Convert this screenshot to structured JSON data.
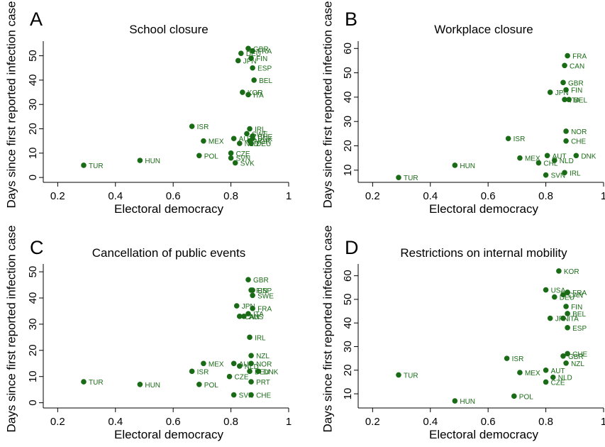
{
  "colors": {
    "marker": "#1a6b16",
    "label": "#1a6b16",
    "axis": "#000000"
  },
  "chart_data": [
    {
      "type": "scatter",
      "panel_letter": "A",
      "title": "School closure",
      "xlabel": "Electoral democracy",
      "ylabel": "Days since first reported infection case",
      "xlim": [
        0.15,
        1.0
      ],
      "ylim": [
        -2,
        56
      ],
      "xticks": [
        0.2,
        0.4,
        0.6,
        0.8,
        1
      ],
      "xtick_labels": [
        "0.2",
        "0.4",
        "0.6",
        "0.8",
        "1"
      ],
      "yticks": [
        0,
        10,
        20,
        30,
        40,
        50
      ],
      "ytick_labels": [
        "0",
        "10",
        "20",
        "30",
        "40",
        "50"
      ],
      "grid": false,
      "points": [
        {
          "x": 0.29,
          "y": 5,
          "label": "TUR"
        },
        {
          "x": 0.485,
          "y": 7,
          "label": "HUN"
        },
        {
          "x": 0.69,
          "y": 9,
          "label": "POL"
        },
        {
          "x": 0.705,
          "y": 15,
          "label": "MEX"
        },
        {
          "x": 0.665,
          "y": 21,
          "label": "ISR"
        },
        {
          "x": 0.8,
          "y": 10,
          "label": "CZE"
        },
        {
          "x": 0.8,
          "y": 8,
          "label": "SVN"
        },
        {
          "x": 0.815,
          "y": 6,
          "label": "SVK"
        },
        {
          "x": 0.81,
          "y": 16,
          "label": "AUT"
        },
        {
          "x": 0.83,
          "y": 14,
          "label": "NLD"
        },
        {
          "x": 0.865,
          "y": 20,
          "label": "IRL"
        },
        {
          "x": 0.855,
          "y": 18,
          "label": "SWE"
        },
        {
          "x": 0.875,
          "y": 17,
          "label": "CHE"
        },
        {
          "x": 0.875,
          "y": 16,
          "label": "DNK"
        },
        {
          "x": 0.865,
          "y": 15,
          "label": "NOR"
        },
        {
          "x": 0.87,
          "y": 14,
          "label": "DEU"
        },
        {
          "x": 0.84,
          "y": 35,
          "label": "KOR"
        },
        {
          "x": 0.86,
          "y": 34,
          "label": "ITA"
        },
        {
          "x": 0.88,
          "y": 40,
          "label": "BEL"
        },
        {
          "x": 0.875,
          "y": 45,
          "label": "ESP"
        },
        {
          "x": 0.825,
          "y": 48,
          "label": "JPN"
        },
        {
          "x": 0.87,
          "y": 49,
          "label": "FIN"
        },
        {
          "x": 0.835,
          "y": 51,
          "label": "DEU"
        },
        {
          "x": 0.86,
          "y": 53,
          "label": "GBR"
        },
        {
          "x": 0.875,
          "y": 52,
          "label": "FRA"
        }
      ]
    },
    {
      "type": "scatter",
      "panel_letter": "B",
      "title": "Workplace closure",
      "xlabel": "Electoral democracy",
      "ylabel": "Days since first reported infection case",
      "xlim": [
        0.15,
        1.0
      ],
      "ylim": [
        5,
        63
      ],
      "xticks": [
        0.2,
        0.4,
        0.6,
        0.8,
        1
      ],
      "xtick_labels": [
        "0.2",
        "0.4",
        "0.6",
        "0.8",
        "1"
      ],
      "yticks": [
        10,
        20,
        30,
        40,
        50,
        60
      ],
      "ytick_labels": [
        "10",
        "20",
        "30",
        "40",
        "50",
        "60"
      ],
      "grid": false,
      "points": [
        {
          "x": 0.29,
          "y": 7,
          "label": "TUR"
        },
        {
          "x": 0.485,
          "y": 12,
          "label": "HUN"
        },
        {
          "x": 0.67,
          "y": 23,
          "label": "ISR"
        },
        {
          "x": 0.71,
          "y": 15,
          "label": "MEX"
        },
        {
          "x": 0.775,
          "y": 13,
          "label": "CHL"
        },
        {
          "x": 0.805,
          "y": 16,
          "label": "AUT"
        },
        {
          "x": 0.83,
          "y": 14,
          "label": "NLD"
        },
        {
          "x": 0.8,
          "y": 8,
          "label": "SVN"
        },
        {
          "x": 0.865,
          "y": 9,
          "label": "IRL"
        },
        {
          "x": 0.905,
          "y": 16,
          "label": "DNK"
        },
        {
          "x": 0.87,
          "y": 22,
          "label": "CHE"
        },
        {
          "x": 0.87,
          "y": 26,
          "label": "NOR"
        },
        {
          "x": 0.865,
          "y": 39,
          "label": "ITA"
        },
        {
          "x": 0.88,
          "y": 39,
          "label": "BEL"
        },
        {
          "x": 0.815,
          "y": 42,
          "label": "JPN"
        },
        {
          "x": 0.87,
          "y": 43,
          "label": "FIN"
        },
        {
          "x": 0.86,
          "y": 46,
          "label": "GBR"
        },
        {
          "x": 0.865,
          "y": 53,
          "label": "CAN"
        },
        {
          "x": 0.875,
          "y": 57,
          "label": "FRA"
        }
      ]
    },
    {
      "type": "scatter",
      "panel_letter": "C",
      "title": "Cancellation of public events",
      "xlabel": "Electoral democracy",
      "ylabel": "Days since first reported infection case",
      "xlim": [
        0.15,
        1.0
      ],
      "ylim": [
        -2,
        53
      ],
      "xticks": [
        0.2,
        0.4,
        0.6,
        0.8,
        1
      ],
      "xtick_labels": [
        "0.2",
        "0.4",
        "0.6",
        "0.8",
        "1"
      ],
      "yticks": [
        0,
        10,
        20,
        30,
        40,
        50
      ],
      "ytick_labels": [
        "0",
        "10",
        "20",
        "30",
        "40",
        "50"
      ],
      "grid": false,
      "points": [
        {
          "x": 0.29,
          "y": 8,
          "label": "TUR"
        },
        {
          "x": 0.485,
          "y": 7,
          "label": "HUN"
        },
        {
          "x": 0.69,
          "y": 7,
          "label": "POL"
        },
        {
          "x": 0.665,
          "y": 12,
          "label": "ISR"
        },
        {
          "x": 0.705,
          "y": 15,
          "label": "MEX"
        },
        {
          "x": 0.795,
          "y": 10,
          "label": "CZE"
        },
        {
          "x": 0.81,
          "y": 3,
          "label": "SVN"
        },
        {
          "x": 0.87,
          "y": 3,
          "label": "CHE"
        },
        {
          "x": 0.81,
          "y": 15,
          "label": "AUT"
        },
        {
          "x": 0.83,
          "y": 14,
          "label": "NLD"
        },
        {
          "x": 0.87,
          "y": 15,
          "label": "NOR"
        },
        {
          "x": 0.865,
          "y": 12,
          "label": "DEU"
        },
        {
          "x": 0.895,
          "y": 12,
          "label": "DNK"
        },
        {
          "x": 0.87,
          "y": 8,
          "label": "PRT"
        },
        {
          "x": 0.87,
          "y": 18,
          "label": "NZL"
        },
        {
          "x": 0.865,
          "y": 25,
          "label": "IRL"
        },
        {
          "x": 0.83,
          "y": 33,
          "label": "CAN"
        },
        {
          "x": 0.845,
          "y": 33,
          "label": "AUS"
        },
        {
          "x": 0.86,
          "y": 34,
          "label": "ITA"
        },
        {
          "x": 0.82,
          "y": 37,
          "label": "JPN"
        },
        {
          "x": 0.875,
          "y": 36,
          "label": "FRA"
        },
        {
          "x": 0.875,
          "y": 41,
          "label": "SWE"
        },
        {
          "x": 0.87,
          "y": 43,
          "label": "FIN"
        },
        {
          "x": 0.875,
          "y": 43,
          "label": "ESP"
        },
        {
          "x": 0.86,
          "y": 47,
          "label": "GBR"
        }
      ]
    },
    {
      "type": "scatter",
      "panel_letter": "D",
      "title": "Restrictions on internal mobility",
      "xlabel": "Electoral democracy",
      "ylabel": "Days since first reported infection case",
      "xlim": [
        0.15,
        1.0
      ],
      "ylim": [
        4,
        65
      ],
      "xticks": [
        0.2,
        0.4,
        0.6,
        0.8,
        1
      ],
      "xtick_labels": [
        "0.2",
        "0.4",
        "0.6",
        "0.8",
        "1"
      ],
      "yticks": [
        10,
        20,
        30,
        40,
        50,
        60
      ],
      "ytick_labels": [
        "10",
        "20",
        "30",
        "40",
        "50",
        "60"
      ],
      "grid": false,
      "points": [
        {
          "x": 0.29,
          "y": 18,
          "label": "TUR"
        },
        {
          "x": 0.485,
          "y": 7,
          "label": "HUN"
        },
        {
          "x": 0.69,
          "y": 9,
          "label": "POL"
        },
        {
          "x": 0.665,
          "y": 25,
          "label": "ISR"
        },
        {
          "x": 0.71,
          "y": 19,
          "label": "MEX"
        },
        {
          "x": 0.8,
          "y": 20,
          "label": "AUT"
        },
        {
          "x": 0.825,
          "y": 17,
          "label": "NLD"
        },
        {
          "x": 0.8,
          "y": 15,
          "label": "CZE"
        },
        {
          "x": 0.87,
          "y": 23,
          "label": "NZL"
        },
        {
          "x": 0.86,
          "y": 26,
          "label": "GBR"
        },
        {
          "x": 0.875,
          "y": 27,
          "label": "CHE"
        },
        {
          "x": 0.875,
          "y": 38,
          "label": "ESP"
        },
        {
          "x": 0.815,
          "y": 42,
          "label": "JPN"
        },
        {
          "x": 0.86,
          "y": 42,
          "label": "ITA"
        },
        {
          "x": 0.875,
          "y": 44,
          "label": "BEL"
        },
        {
          "x": 0.87,
          "y": 47,
          "label": "FIN"
        },
        {
          "x": 0.83,
          "y": 51,
          "label": "DEU"
        },
        {
          "x": 0.8,
          "y": 54,
          "label": "USA"
        },
        {
          "x": 0.86,
          "y": 52,
          "label": "CAN"
        },
        {
          "x": 0.875,
          "y": 53,
          "label": "FRA"
        },
        {
          "x": 0.845,
          "y": 62,
          "label": "KOR"
        }
      ]
    }
  ]
}
